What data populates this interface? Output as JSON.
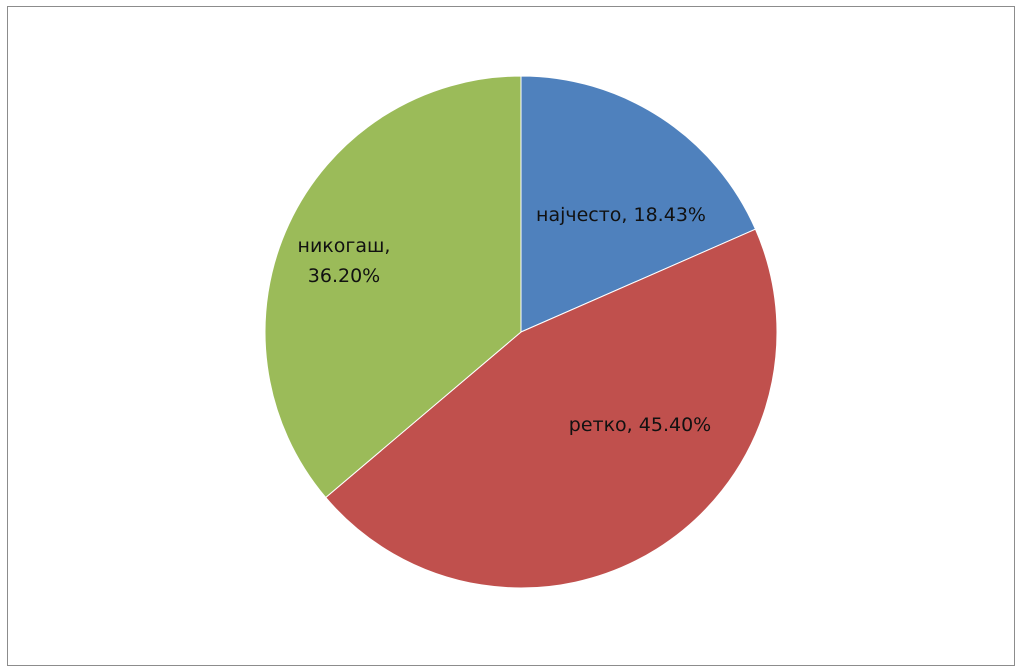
{
  "chart_data": {
    "type": "pie",
    "title": "",
    "slices": [
      {
        "label": "најчесто",
        "value": 18.43,
        "display": "18.43%",
        "color": "#4F81BD"
      },
      {
        "label": "ретко",
        "value": 45.4,
        "display": "45.40%",
        "color": "#C0504D"
      },
      {
        "label": "никогаш",
        "value": 36.2,
        "display": "36.20%",
        "color": "#9BBB59"
      }
    ],
    "start_angle": "12 o'clock",
    "direction": "clockwise",
    "legend": "none",
    "data_labels": "category name and percentage, inside slices"
  }
}
